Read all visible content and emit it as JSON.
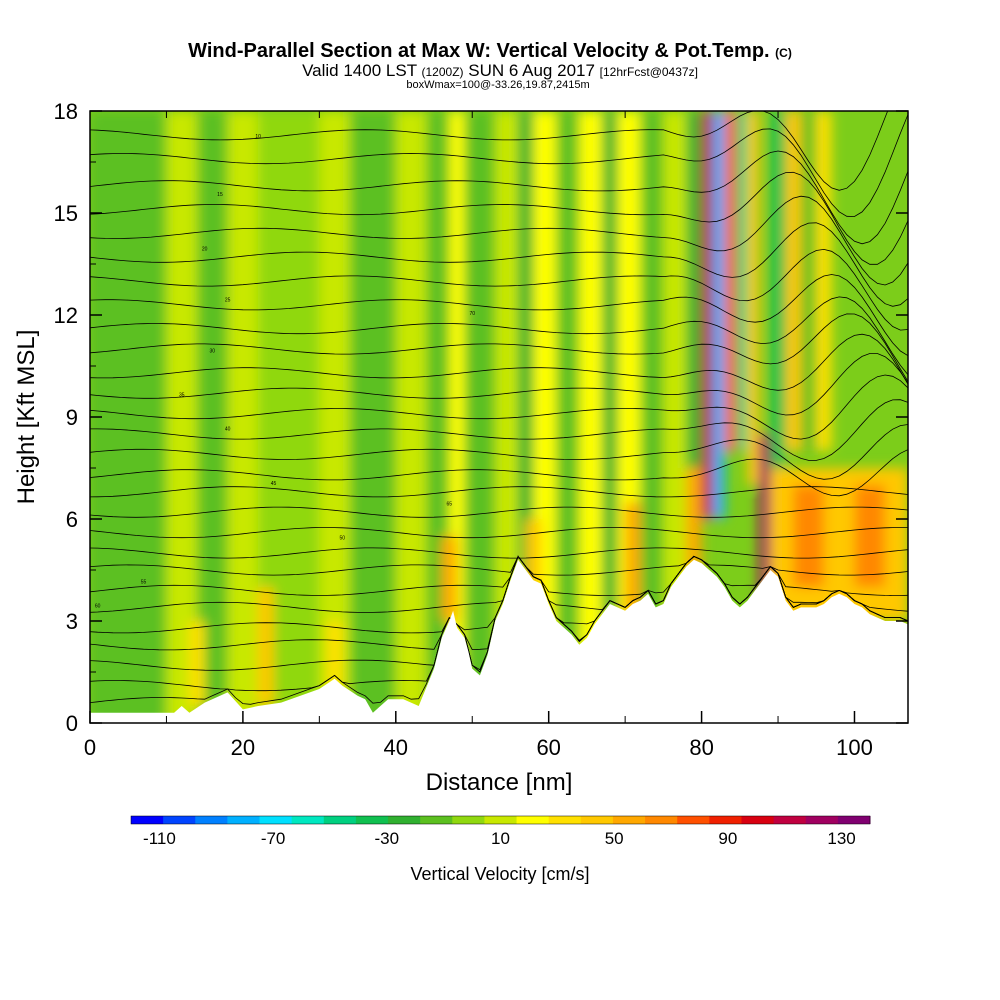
{
  "chart_data": {
    "type": "heatmap",
    "title": "Wind-Parallel Section at Max W: Vertical Velocity & Pot.Temp.",
    "title_suffix": "(C)",
    "subtitle_valid": "Valid 1400 LST",
    "subtitle_utc": "(1200Z)",
    "subtitle_date": "SUN 6 Aug 2017",
    "subtitle_fcst": "[12hrFcst@0437z]",
    "subtitle_box": "boxWmax=100@-33.26,19.87,2415m",
    "xlabel": "Distance [nm]",
    "ylabel": "Height [Kft MSL]",
    "xlim": [
      0,
      107
    ],
    "ylim": [
      0,
      18
    ],
    "x_ticks": [
      "0",
      "20",
      "40",
      "60",
      "80",
      "100"
    ],
    "y_ticks": [
      "0",
      "3",
      "6",
      "9",
      "12",
      "15",
      "18"
    ],
    "colorbar": {
      "label": "Vertical Velocity [cm/s]",
      "tick_labels": [
        "-110",
        "-70",
        "-30",
        "10",
        "50",
        "90",
        "130"
      ],
      "min": -120,
      "max": 140,
      "colors": [
        "#0000ff",
        "#0044ff",
        "#0080ff",
        "#00b0ff",
        "#00e0ff",
        "#00e8c0",
        "#00d080",
        "#10c050",
        "#30b030",
        "#5cc020",
        "#90d810",
        "#c8e800",
        "#ffff00",
        "#ffe000",
        "#ffc800",
        "#ffa800",
        "#ff8800",
        "#ff5000",
        "#f02000",
        "#d80010",
        "#c00040",
        "#a00060",
        "#800070"
      ]
    },
    "terrain": {
      "x": [
        0,
        11,
        12,
        13,
        15,
        18,
        20,
        22,
        25,
        30,
        32,
        33,
        35,
        36,
        37,
        39,
        41,
        43,
        45,
        46,
        47,
        47.5,
        48,
        49,
        49.5,
        50,
        51,
        52,
        53,
        54,
        55,
        56,
        58,
        59,
        60,
        61,
        62,
        63,
        64,
        65,
        66,
        67,
        68,
        69,
        70,
        71,
        72,
        73,
        74,
        75,
        76,
        77,
        78,
        79,
        80,
        81,
        82,
        83,
        84,
        85,
        86,
        87,
        88,
        89,
        90,
        91,
        92,
        93,
        94,
        95,
        96,
        97,
        98,
        99,
        100,
        101,
        102,
        103,
        104,
        105,
        106,
        107
      ],
      "y": [
        0.3,
        0.3,
        0.5,
        0.3,
        0.6,
        0.9,
        0.4,
        0.5,
        0.6,
        1.0,
        1.3,
        1.1,
        0.8,
        0.7,
        0.3,
        0.7,
        0.7,
        0.5,
        1.6,
        2.5,
        3.0,
        3.3,
        2.8,
        2.5,
        2.1,
        1.6,
        1.4,
        2.0,
        3.0,
        3.5,
        4.2,
        4.8,
        4.2,
        4.1,
        3.5,
        3.0,
        2.8,
        2.6,
        2.3,
        2.5,
        2.9,
        3.2,
        3.5,
        3.4,
        3.3,
        3.5,
        3.6,
        3.8,
        3.4,
        3.5,
        4.0,
        4.3,
        4.6,
        4.8,
        4.7,
        4.5,
        4.3,
        4.0,
        3.6,
        3.4,
        3.6,
        3.9,
        4.2,
        4.5,
        4.3,
        3.6,
        3.3,
        3.4,
        3.4,
        3.4,
        3.5,
        3.7,
        3.8,
        3.7,
        3.5,
        3.4,
        3.2,
        3.1,
        3.0,
        3.0,
        3.0,
        2.9
      ]
    },
    "contour_labels": [
      "10",
      "15",
      "20",
      "25",
      "30",
      "35",
      "40",
      "45",
      "50",
      "55",
      "60",
      "65",
      "70"
    ]
  }
}
